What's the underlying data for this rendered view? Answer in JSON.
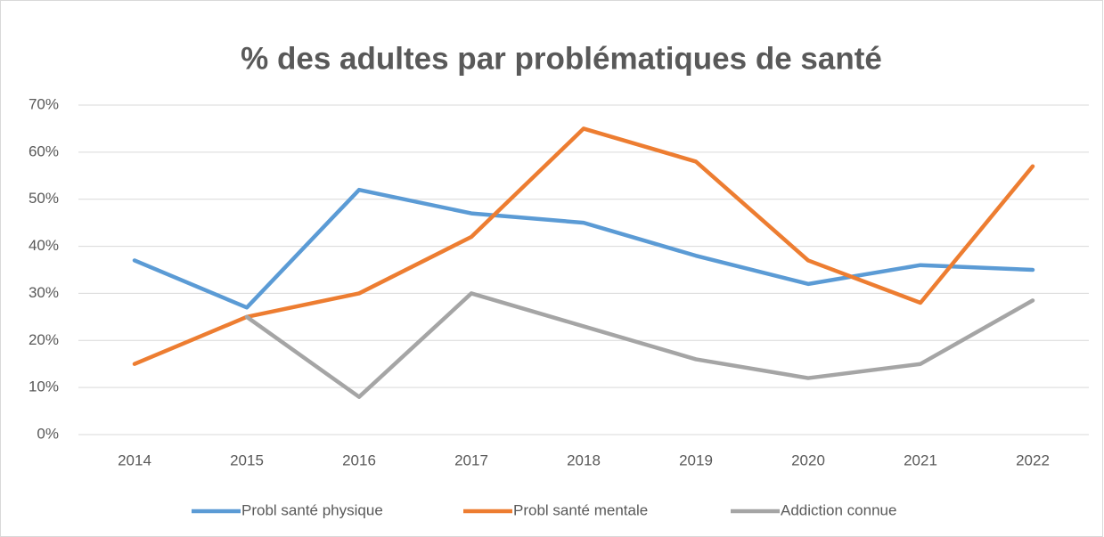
{
  "chart_data": {
    "type": "line",
    "title": "% des adultes par problématiques de santé",
    "categories": [
      "2014",
      "2015",
      "2016",
      "2017",
      "2018",
      "2019",
      "2020",
      "2021",
      "2022"
    ],
    "series": [
      {
        "name": "Probl santé physique",
        "color": "#5b9bd5",
        "values": [
          37,
          27,
          52,
          47,
          45,
          38,
          32,
          36,
          35
        ]
      },
      {
        "name": "Probl santé mentale",
        "color": "#ed7d31",
        "values": [
          15,
          25,
          30,
          42,
          65,
          58,
          37,
          28,
          57
        ]
      },
      {
        "name": "Addiction connue",
        "color": "#a5a5a5",
        "values": [
          null,
          25,
          8,
          30,
          23,
          16,
          12,
          15,
          28.5
        ]
      }
    ],
    "ylim": [
      0,
      70
    ],
    "yticks": [
      {
        "value": 0,
        "label": "0%"
      },
      {
        "value": 10,
        "label": "10%"
      },
      {
        "value": 20,
        "label": "20%"
      },
      {
        "value": 30,
        "label": "30%"
      },
      {
        "value": 40,
        "label": "40%"
      },
      {
        "value": 50,
        "label": "50%"
      },
      {
        "value": 60,
        "label": "60%"
      },
      {
        "value": 70,
        "label": "70%"
      }
    ],
    "grid": true,
    "legend": "bottom"
  }
}
